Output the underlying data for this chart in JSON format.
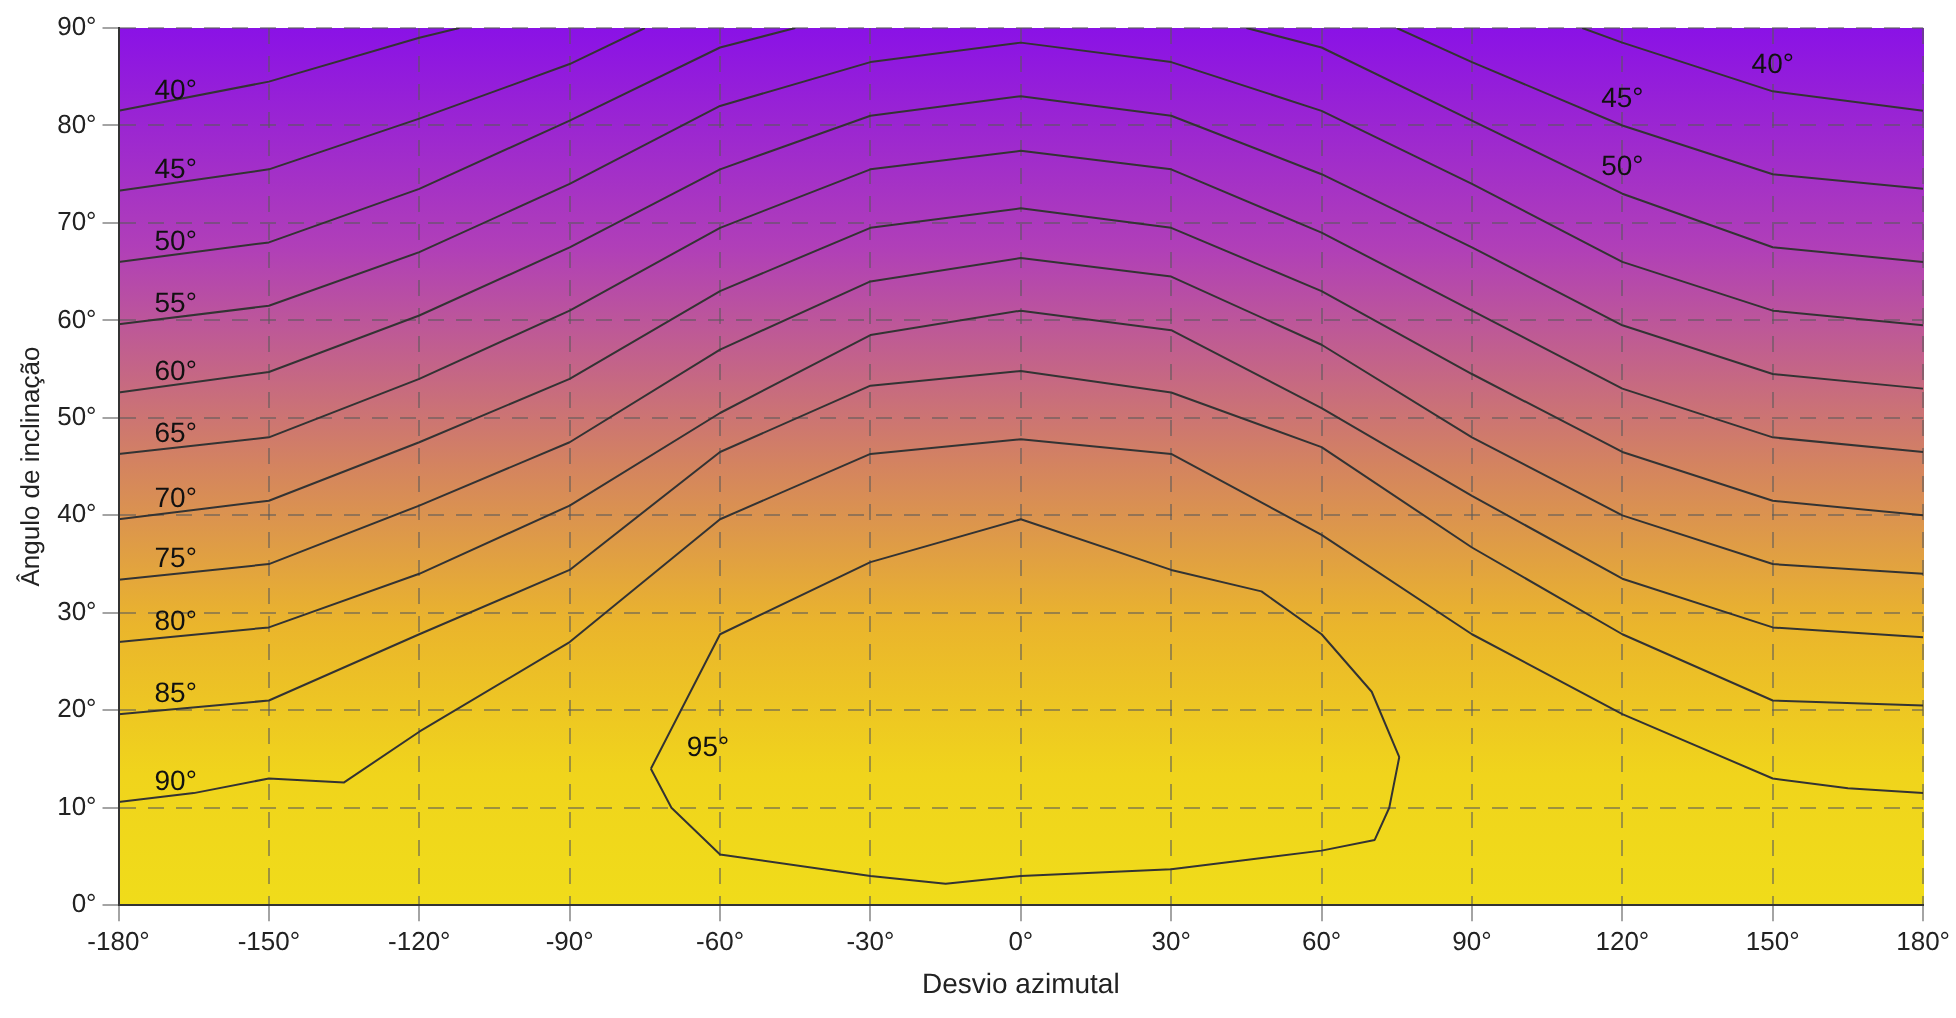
{
  "chart_data": {
    "type": "line",
    "xlabel": "Desvio azimutal",
    "ylabel": "Ângulo de inclinação",
    "xlim": [
      -180,
      180
    ],
    "ylim": [
      0,
      90
    ],
    "xticks": [
      {
        "value": -180,
        "label": "-180°"
      },
      {
        "value": -150,
        "label": "-150°"
      },
      {
        "value": -120,
        "label": "-120°"
      },
      {
        "value": -90,
        "label": "-90°"
      },
      {
        "value": -60,
        "label": "-60°"
      },
      {
        "value": -30,
        "label": "-30°"
      },
      {
        "value": 0,
        "label": "0°"
      },
      {
        "value": 30,
        "label": "30°"
      },
      {
        "value": 60,
        "label": "60°"
      },
      {
        "value": 90,
        "label": "90°"
      },
      {
        "value": 120,
        "label": "120°"
      },
      {
        "value": 150,
        "label": "150°"
      },
      {
        "value": 180,
        "label": "180°"
      }
    ],
    "yticks": [
      {
        "value": 0,
        "label": "0°"
      },
      {
        "value": 10,
        "label": "10°"
      },
      {
        "value": 20,
        "label": "20°"
      },
      {
        "value": 30,
        "label": "30°"
      },
      {
        "value": 40,
        "label": "40°"
      },
      {
        "value": 50,
        "label": "50°"
      },
      {
        "value": 60,
        "label": "60°"
      },
      {
        "value": 70,
        "label": "70°"
      },
      {
        "value": 80,
        "label": "80°"
      },
      {
        "value": 90,
        "label": "90°"
      }
    ],
    "grid": true,
    "legend": false,
    "marker": "none",
    "line_style": "solid",
    "series": [
      {
        "name": "40°",
        "color": "#333333",
        "x": [
          -180,
          -150,
          -120,
          -112,
          0,
          112,
          120,
          150,
          180
        ],
        "values": [
          81.5,
          84.5,
          89,
          90,
          null,
          90,
          88.5,
          83.5,
          81.5
        ]
      },
      {
        "name": "45°",
        "color": "#333333",
        "x": [
          -180,
          -150,
          -120,
          -90,
          -75,
          0,
          75,
          90,
          120,
          150,
          180
        ],
        "values": [
          73.3,
          75.5,
          80.7,
          86.3,
          90,
          null,
          90,
          86.5,
          80,
          75,
          73.5
        ]
      },
      {
        "name": "50°",
        "color": "#333333",
        "x": [
          -180,
          -150,
          -120,
          -90,
          -60,
          -45,
          0,
          45,
          60,
          90,
          120,
          150,
          180
        ],
        "values": [
          66,
          68,
          73.5,
          80.5,
          88,
          90,
          null,
          90,
          88,
          80.5,
          73,
          67.5,
          66
        ]
      },
      {
        "name": "55°",
        "color": "#333333",
        "x": [
          -180,
          -150,
          -120,
          -90,
          -60,
          -30,
          0,
          30,
          60,
          90,
          120,
          150,
          180
        ],
        "values": [
          59.6,
          61.5,
          67,
          74,
          82,
          86.5,
          88.5,
          86.5,
          81.5,
          74,
          66,
          61,
          59.5
        ]
      },
      {
        "name": "60°",
        "color": "#333333",
        "x": [
          -180,
          -150,
          -120,
          -90,
          -60,
          -30,
          0,
          30,
          60,
          90,
          120,
          150,
          180
        ],
        "values": [
          52.6,
          54.7,
          60.5,
          67.5,
          75.5,
          81,
          83,
          81,
          75,
          67.5,
          59.5,
          54.5,
          53
        ]
      },
      {
        "name": "65°",
        "color": "#333333",
        "x": [
          -180,
          -150,
          -120,
          -90,
          -60,
          -30,
          0,
          30,
          60,
          90,
          120,
          150,
          180
        ],
        "values": [
          46.3,
          48,
          54,
          61,
          69.5,
          75.5,
          77.4,
          75.5,
          69,
          61,
          53,
          48,
          46.5
        ]
      },
      {
        "name": "70°",
        "color": "#333333",
        "x": [
          -180,
          -150,
          -120,
          -90,
          -60,
          -30,
          0,
          30,
          60,
          90,
          120,
          150,
          180
        ],
        "values": [
          39.6,
          41.5,
          47.5,
          54,
          63,
          69.5,
          71.5,
          69.5,
          63,
          54.5,
          46.5,
          41.5,
          40
        ]
      },
      {
        "name": "75°",
        "color": "#333333",
        "x": [
          -180,
          -150,
          -120,
          -90,
          -60,
          -30,
          0,
          30,
          60,
          90,
          120,
          150,
          180
        ],
        "values": [
          33.4,
          35,
          41,
          47.5,
          57,
          64,
          66.4,
          64.5,
          57.5,
          48,
          40,
          35,
          34
        ]
      },
      {
        "name": "80°",
        "color": "#333333",
        "x": [
          -180,
          -150,
          -120,
          -90,
          -60,
          -30,
          0,
          30,
          60,
          90,
          120,
          150,
          180
        ],
        "values": [
          27,
          28.5,
          34,
          41,
          50.5,
          58.5,
          61,
          59,
          51,
          42,
          33.5,
          28.5,
          27.5
        ]
      },
      {
        "name": "85°",
        "color": "#333333",
        "x": [
          -180,
          -150,
          -120,
          -90,
          -60,
          -30,
          0,
          30,
          60,
          90,
          120,
          150,
          180
        ],
        "values": [
          19.6,
          21,
          27.8,
          34.4,
          46.5,
          53.3,
          54.8,
          52.6,
          47,
          36.7,
          27.8,
          21,
          20.5
        ]
      },
      {
        "name": "90°",
        "color": "#333333",
        "x": [
          -180,
          -165,
          -150,
          -135,
          -120,
          -90,
          -60,
          -30,
          0,
          30,
          60,
          90,
          120,
          150,
          165,
          180
        ],
        "values": [
          10.6,
          11.5,
          13,
          12.6,
          17.8,
          27,
          39.6,
          46.3,
          47.8,
          46.3,
          38,
          27.8,
          19.6,
          13,
          12,
          11.5
        ]
      },
      {
        "name": "95°",
        "color": "#333333",
        "x": [
          -73.8,
          -60,
          -30,
          0,
          30,
          48,
          60,
          70,
          75.5
        ],
        "values": [
          14,
          27.8,
          35.2,
          39.6,
          34.4,
          32.2,
          27.8,
          21.9,
          15.2
        ]
      },
      {
        "color": "#333333",
        "x": [
          -73.8,
          -69.7,
          -60,
          -30,
          -15,
          0,
          30,
          60,
          70.6,
          73.5,
          75.5
        ],
        "values": [
          14,
          10,
          5.2,
          3,
          2.2,
          3,
          3.7,
          5.6,
          6.7,
          10,
          15.2
        ]
      }
    ]
  }
}
